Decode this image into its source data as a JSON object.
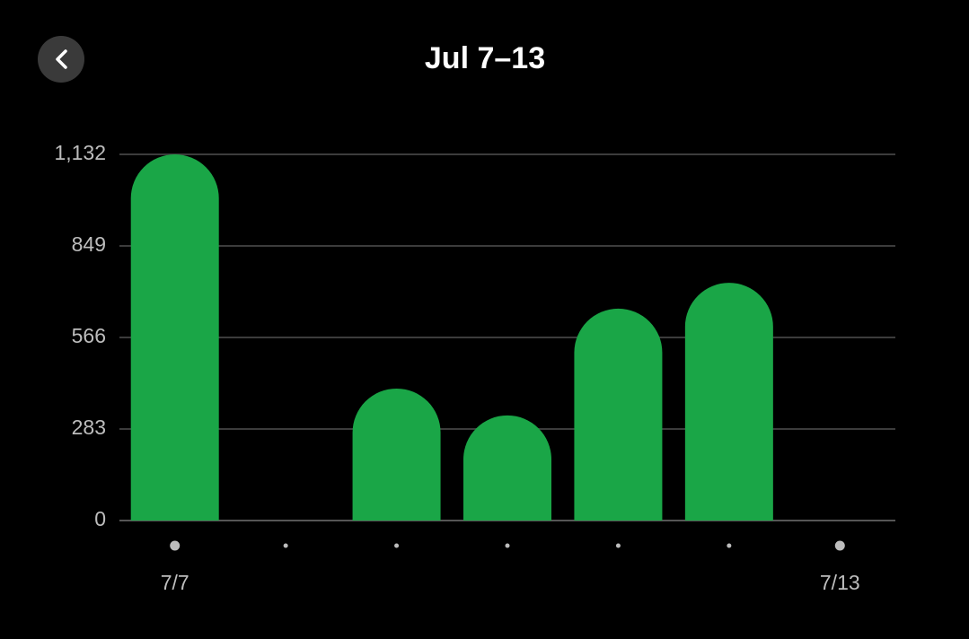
{
  "chart_data": {
    "type": "bar",
    "title": "Jul 7–13",
    "categories": [
      "7/7",
      null,
      null,
      null,
      null,
      null,
      "7/13"
    ],
    "values": [
      1132,
      0,
      408,
      325,
      655,
      735,
      0
    ],
    "color": "#1aa647",
    "ylim": [
      0,
      1132
    ],
    "yticks": [
      0,
      283,
      566,
      849,
      {
        "value": 1132,
        "label": "1,132"
      }
    ],
    "grid": true
  }
}
